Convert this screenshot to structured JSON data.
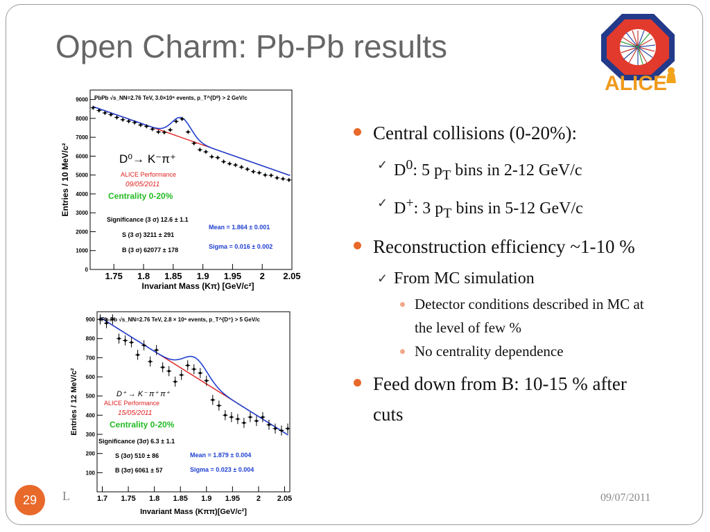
{
  "slide": {
    "title": "Open Charm:  Pb-Pb results",
    "page_number": "29",
    "footer_left": "L",
    "date": "09/07/2011",
    "logo_text": "ALICE",
    "accent": "#e8692a"
  },
  "bullets": [
    {
      "level": 1,
      "text": "Central collisions (0-20%):"
    },
    {
      "level": 2,
      "html": "D<sup>0</sup>: 5 p<sub>T</sub> bins in 2-12 GeV/c"
    },
    {
      "level": 2,
      "html": "D<sup>+</sup>: 3 p<sub>T</sub> bins in 5-12 GeV/c"
    },
    {
      "level": 1,
      "text": "Reconstruction efficiency ~1-10 %"
    },
    {
      "level": 2,
      "text": "From MC simulation"
    },
    {
      "level": 3,
      "text": "Detector conditions described in MC at the level of few %"
    },
    {
      "level": 3,
      "text": "No centrality dependence"
    },
    {
      "level": 1,
      "text": "Feed down from B: 10-15 % after cuts"
    }
  ],
  "chart_data": [
    {
      "type": "scatter",
      "header": "PbPb √s_NN=2.76 TeV, 3.0×10⁶ events, p_T^{D⁰} > 2 GeV/c",
      "decay": "D⁰→ K⁻π⁺",
      "performance": "ALICE Performance",
      "perf_date": "09/05/2011",
      "centrality": "Centrality 0-20%",
      "stats": [
        "Significance (3 σ) 12.6 ± 1.1",
        "S (3 σ) 3211 ± 291",
        "B (3 σ) 62077 ± 178"
      ],
      "fit": [
        "Mean = 1.864 ± 0.001",
        "Sigma = 0.016 ± 0.002"
      ],
      "xlabel": "Invariant Mass (Kπ) [GeV/c²]",
      "ylabel": "Entries / 10 MeV/c²",
      "xlim": [
        1.71,
        2.05
      ],
      "ylim": [
        0,
        9500
      ],
      "xticks": [
        "1.75",
        "1.8",
        "1.85",
        "1.9",
        "1.95",
        "2",
        "2.05"
      ],
      "xtick_values": [
        1.75,
        1.8,
        1.85,
        1.9,
        1.95,
        2.0,
        2.05
      ],
      "yticks": [
        "0",
        "1000",
        "2000",
        "3000",
        "4000",
        "5000",
        "6000",
        "7000",
        "8000",
        "9000"
      ],
      "ytick_values": [
        0,
        1000,
        2000,
        3000,
        4000,
        5000,
        6000,
        7000,
        8000,
        9000
      ],
      "bkg_a": 8680,
      "bkg_b": -11000,
      "x_ref": 1.71,
      "gauss_mean": 1.864,
      "gauss_sigma": 0.016,
      "gauss_amp": 1050,
      "points": {
        "x": [
          1.715,
          1.725,
          1.735,
          1.745,
          1.755,
          1.765,
          1.775,
          1.785,
          1.795,
          1.805,
          1.815,
          1.825,
          1.835,
          1.845,
          1.855,
          1.865,
          1.875,
          1.885,
          1.895,
          1.905,
          1.915,
          1.925,
          1.935,
          1.945,
          1.955,
          1.965,
          1.975,
          1.985,
          1.995,
          2.005,
          2.015,
          2.025,
          2.035,
          2.045
        ],
        "y": [
          8560,
          8420,
          8290,
          8200,
          8050,
          7930,
          7850,
          7780,
          7650,
          7580,
          7430,
          7280,
          7260,
          7390,
          7840,
          7970,
          7280,
          6680,
          6340,
          6230,
          5970,
          5920,
          5710,
          5600,
          5530,
          5420,
          5310,
          5180,
          5120,
          5000,
          4980,
          4850,
          4800,
          4740
        ]
      }
    },
    {
      "type": "scatter",
      "header": "Pb-Pb √s_NN=2.76 TeV, 2.8 × 10⁶ events, p_T^{D⁺} > 5 GeV/c",
      "decay": "D⁺ → K⁻ π⁺ π⁺",
      "performance": "ALICE Performance",
      "perf_date": "15/05/2011",
      "centrality": "Centrality 0-20%",
      "stats": [
        "Significance (3σ) 6.3 ± 1.1",
        "S (3σ) 510 ± 86",
        "B (3σ) 6061 ± 57"
      ],
      "fit": [
        "Mean = 1.879 ± 0.004",
        "Sigma = 0.023 ± 0.004"
      ],
      "xlabel": "Invariant Mass (Kππ)[GeV/c²]",
      "ylabel": "Entries / 12 MeV/c²",
      "xlim": [
        1.69,
        2.06
      ],
      "ylim": [
        0,
        940
      ],
      "xticks": [
        "1.7",
        "1.75",
        "1.8",
        "1.85",
        "1.9",
        "1.95",
        "2",
        "2.05"
      ],
      "xtick_values": [
        1.7,
        1.75,
        1.8,
        1.85,
        1.9,
        1.95,
        2.0,
        2.05
      ],
      "yticks": [
        "100",
        "200",
        "300",
        "400",
        "500",
        "600",
        "700",
        "800",
        "900"
      ],
      "ytick_values": [
        100,
        200,
        300,
        400,
        500,
        600,
        700,
        800,
        900
      ],
      "bkg_a": 920,
      "bkg_b": -1700,
      "x_ref": 1.69,
      "gauss_mean": 1.879,
      "gauss_sigma": 0.023,
      "gauss_amp": 100,
      "points": {
        "x": [
          1.696,
          1.708,
          1.72,
          1.732,
          1.744,
          1.756,
          1.768,
          1.78,
          1.792,
          1.804,
          1.816,
          1.828,
          1.84,
          1.852,
          1.864,
          1.876,
          1.888,
          1.9,
          1.912,
          1.924,
          1.936,
          1.948,
          1.96,
          1.972,
          1.984,
          1.996,
          2.008,
          2.02,
          2.032,
          2.044,
          2.056
        ],
        "y": [
          900,
          880,
          900,
          800,
          790,
          780,
          715,
          765,
          680,
          740,
          650,
          630,
          575,
          610,
          660,
          640,
          620,
          580,
          480,
          450,
          400,
          390,
          380,
          360,
          390,
          370,
          390,
          350,
          330,
          320,
          330
        ]
      }
    }
  ]
}
